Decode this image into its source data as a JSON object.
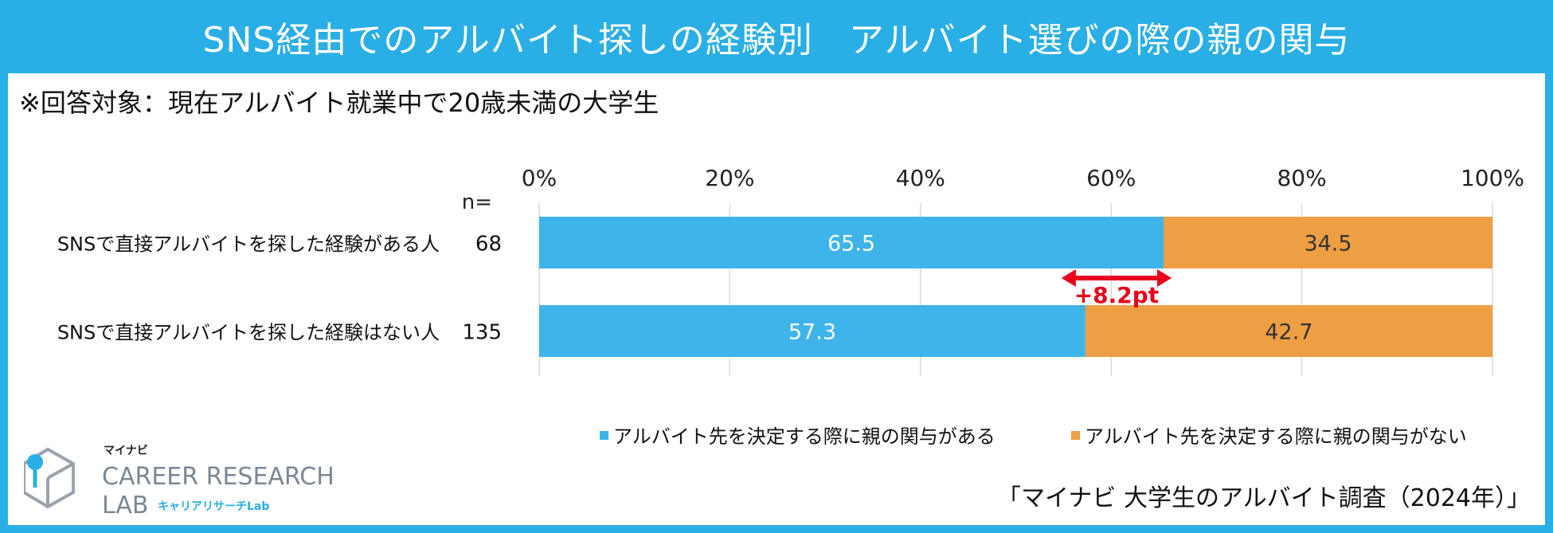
{
  "title": "SNS経由でのアルバイト探しの経験別　アルバイト選びの際の親の関与",
  "target_note": "※回答対象：現在アルバイト就業中で20歳未満の大学生",
  "source_note": "「マイナビ 大学生のアルバイト調査（2024年）」",
  "logo": {
    "small": "マイナビ",
    "line1": "CAREER RESEARCH",
    "line2": "LAB",
    "sub": "キャリアリサーチLab"
  },
  "colors": {
    "frame": "#29aee6",
    "series1": "#3eb4ea",
    "series2": "#ee9f44",
    "annotation": "#e8001c"
  },
  "chart_data": {
    "type": "bar",
    "orientation": "horizontal",
    "stacked": true,
    "percent": true,
    "n_label": "n=",
    "categories": [
      "SNSで直接アルバイトを探した経験がある人",
      "SNSで直接アルバイトを探した経験はない人"
    ],
    "n": [
      "68",
      "135"
    ],
    "series": [
      {
        "name": "アルバイト先を決定する際に親の関与がある",
        "values": [
          65.5,
          57.3
        ],
        "color": "#3eb4ea",
        "label_color": "#ffffff"
      },
      {
        "name": "アルバイト先を決定する際に親の関与がない",
        "values": [
          34.5,
          42.7
        ],
        "color": "#ee9f44",
        "label_color": "#333333"
      }
    ],
    "xlim": [
      0,
      100
    ],
    "xticks": [
      "0%",
      "20%",
      "40%",
      "60%",
      "80%",
      "100%"
    ],
    "annotation": "+8.2pt",
    "grid": true,
    "legend": "bottom"
  }
}
